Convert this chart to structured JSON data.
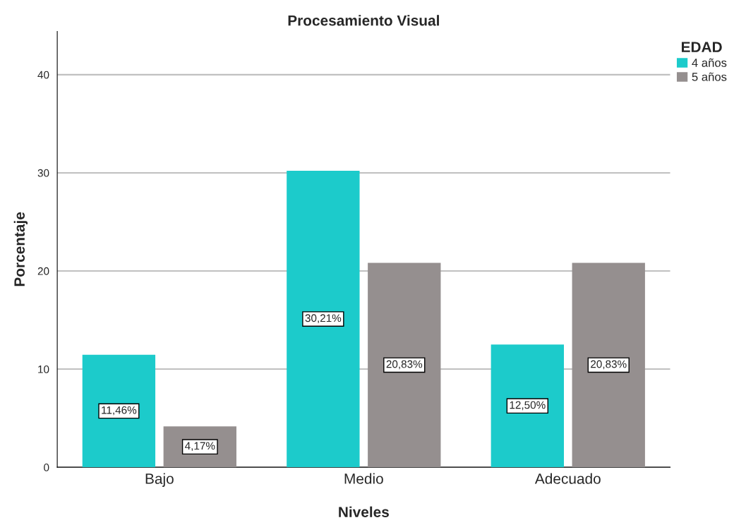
{
  "chart_data": {
    "type": "bar",
    "title": "Procesamiento Visual",
    "xlabel": "Niveles",
    "ylabel": "Porcentaje",
    "legend_title": "EDAD",
    "categories": [
      "Bajo",
      "Medio",
      "Adecuado"
    ],
    "series": [
      {
        "name": "4 años",
        "color": "#1ccbcb",
        "values": [
          11.46,
          30.21,
          12.5
        ],
        "value_labels": [
          "11,46%",
          "30,21%",
          "12,50%"
        ]
      },
      {
        "name": "5 años",
        "color": "#958f8f",
        "values": [
          4.17,
          20.83,
          20.83
        ],
        "value_labels": [
          "4,17%",
          "20,83%",
          "20,83%"
        ]
      }
    ],
    "ylim": [
      0,
      44.4
    ],
    "yticks": [
      0,
      10,
      20,
      30,
      40
    ],
    "grid": "y",
    "legend": "top right"
  }
}
